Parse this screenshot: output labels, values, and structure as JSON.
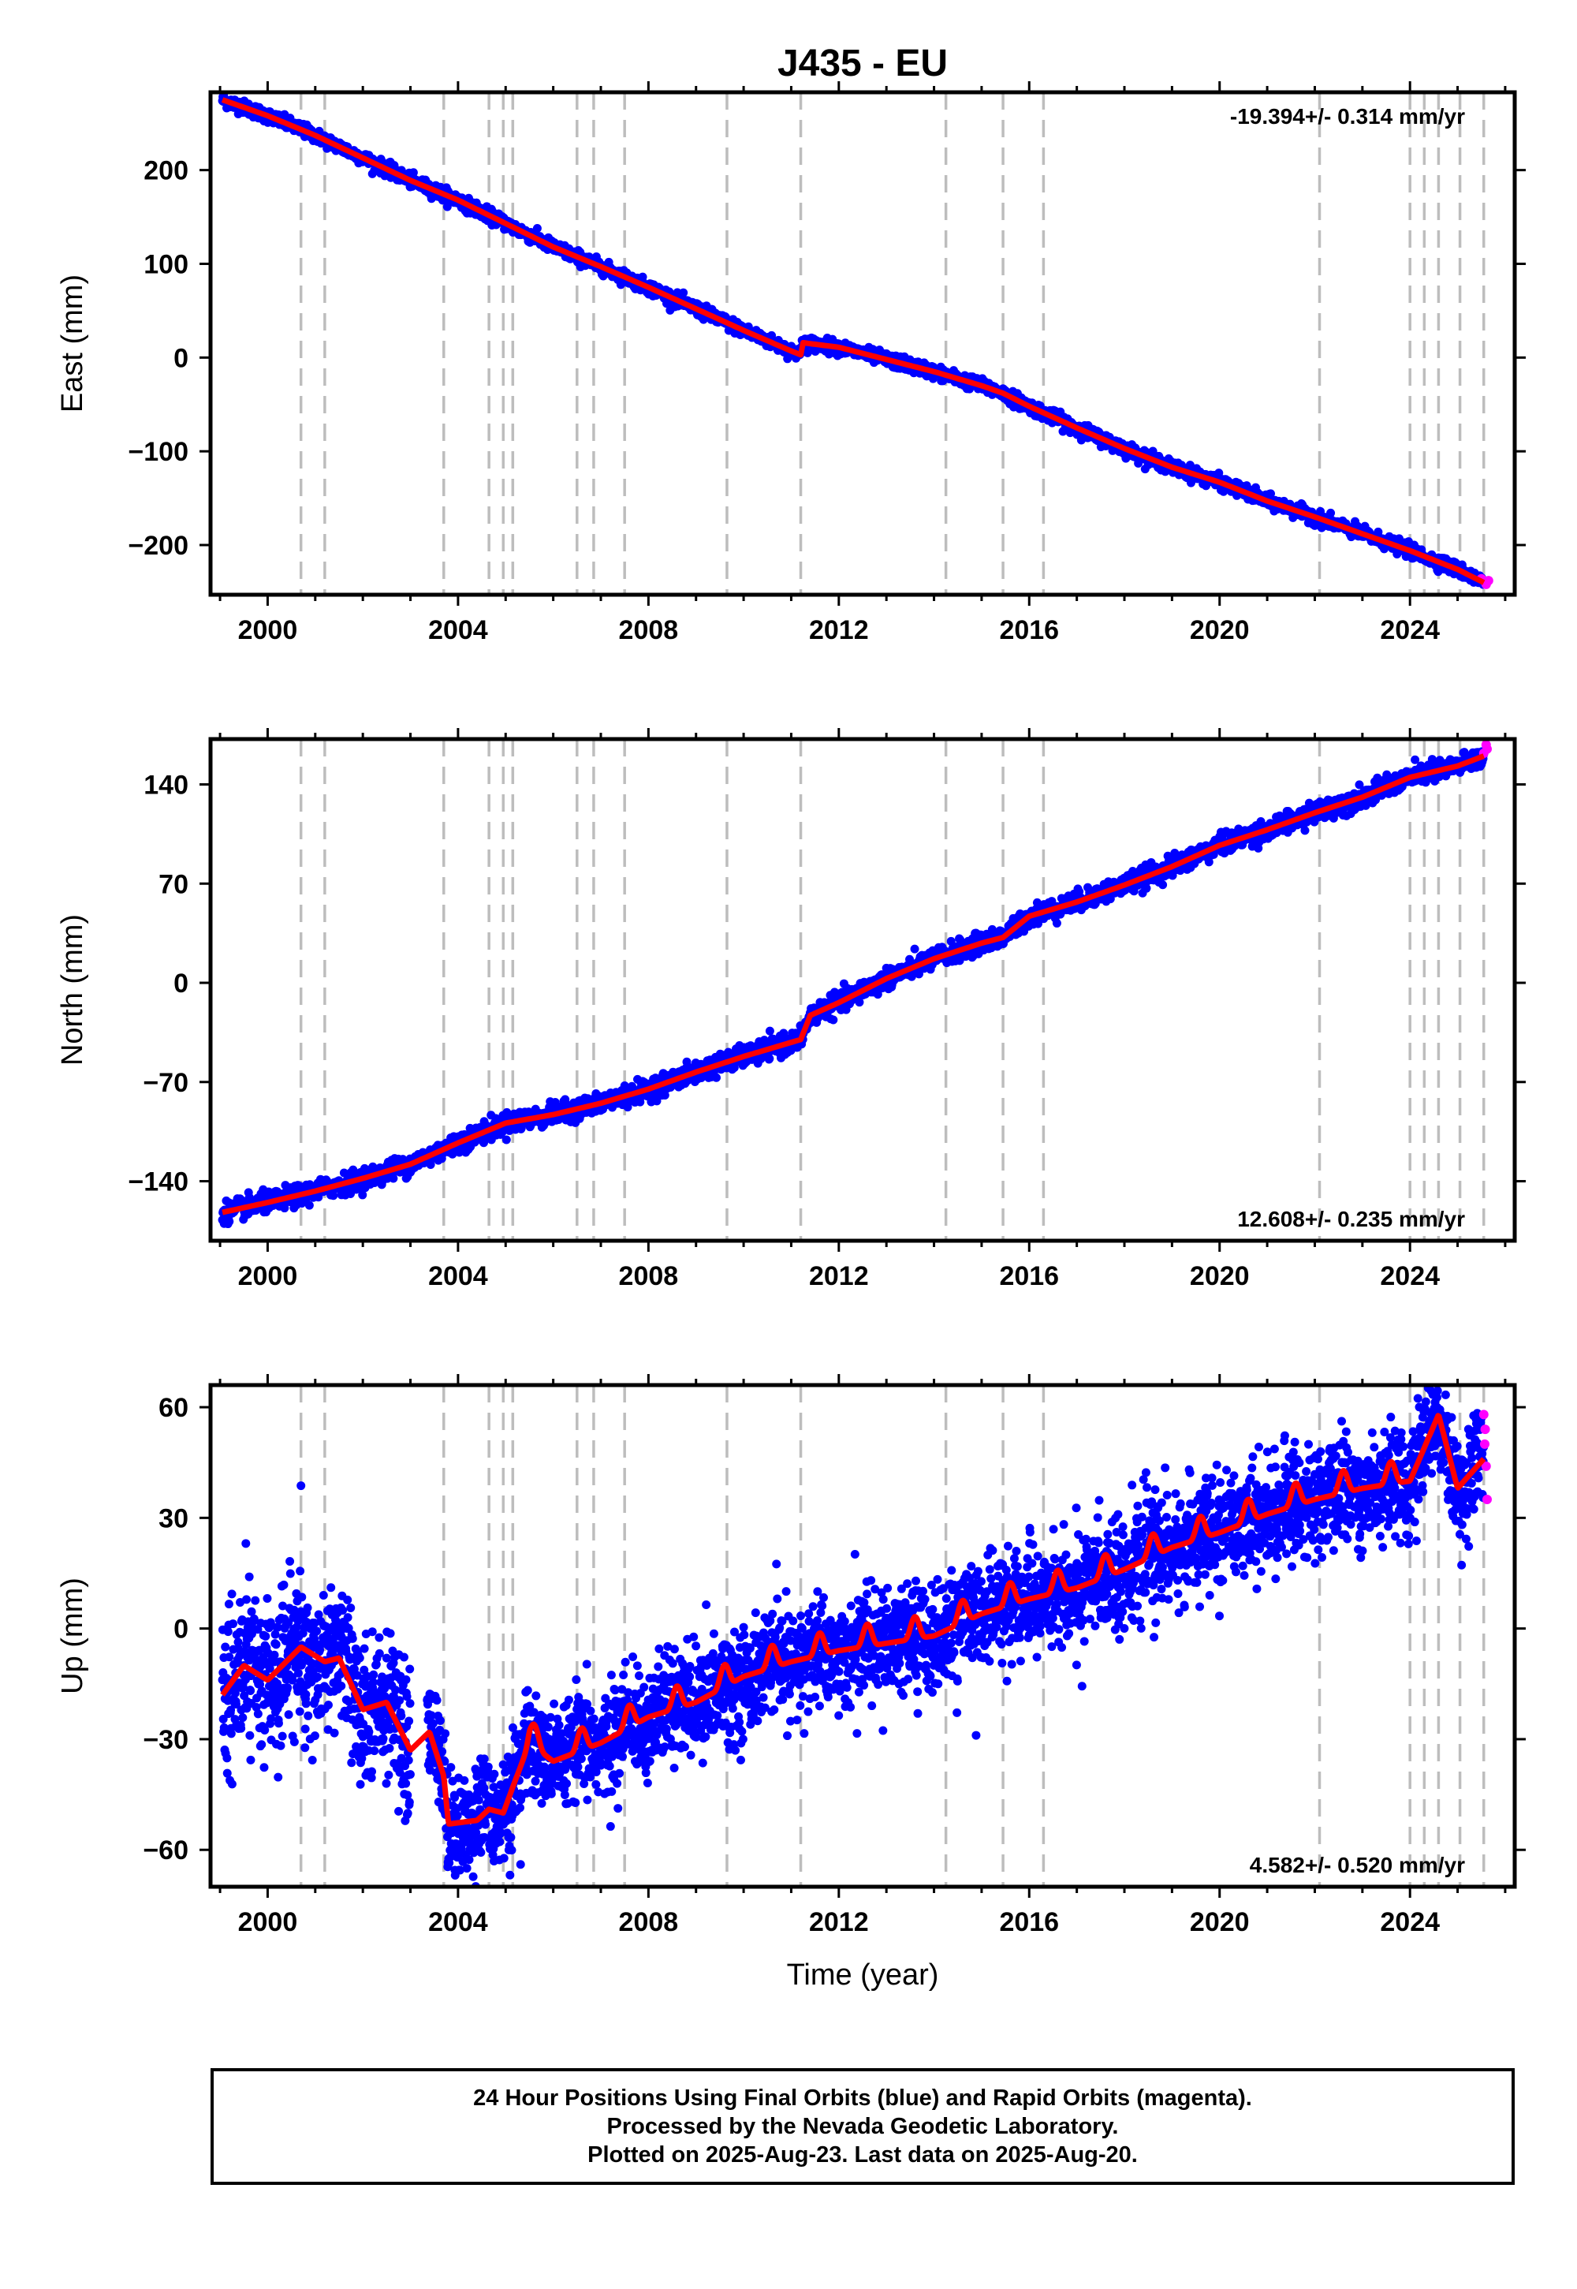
{
  "chart_data": {
    "type": "scatter",
    "title": "J435 - EU",
    "x_tick_labels": [
      "2000",
      "2004",
      "2008",
      "2012",
      "2016",
      "2020",
      "2024"
    ],
    "x_ticks": [
      2000,
      2004,
      2008,
      2012,
      2016,
      2020,
      2024
    ],
    "xlim": [
      1998.8,
      2026.2
    ],
    "xlabel": "Time (year)",
    "event_lines": [
      2000.7,
      2001.2,
      2003.7,
      2004.65,
      2004.95,
      2005.15,
      2006.5,
      2006.85,
      2007.5,
      2009.65,
      2011.2,
      2014.25,
      2015.45,
      2016.3,
      2022.1,
      2024.0,
      2024.3,
      2024.6,
      2025.05,
      2025.55
    ],
    "colors": {
      "final": "#0000ff",
      "rapid": "#ff00ff",
      "model": "#ff0000",
      "event_line": "#bdbdbd"
    },
    "panels": [
      {
        "name": "east",
        "ylabel": "East (mm)",
        "ylim": [
          -253,
          283
        ],
        "y_ticks": [
          200,
          100,
          0,
          -100,
          -200
        ],
        "y_tick_labels": [
          "200",
          "100",
          "0",
          "−100",
          "−200"
        ],
        "rate": "-19.394+/- 0.314 mm/yr",
        "rate_position": "top-right",
        "model_points": [
          [
            1999.05,
            275
          ],
          [
            2000.0,
            258
          ],
          [
            2001.0,
            237
          ],
          [
            2002.0,
            213
          ],
          [
            2003.0,
            189
          ],
          [
            2004.0,
            168
          ],
          [
            2005.0,
            143
          ],
          [
            2006.0,
            118
          ],
          [
            2007.0,
            97
          ],
          [
            2008.0,
            75
          ],
          [
            2009.0,
            52
          ],
          [
            2010.0,
            29
          ],
          [
            2011.0,
            7
          ],
          [
            2011.2,
            3
          ],
          [
            2011.22,
            16
          ],
          [
            2012.0,
            11
          ],
          [
            2013.0,
            -2
          ],
          [
            2014.0,
            -15
          ],
          [
            2015.0,
            -30
          ],
          [
            2015.45,
            -38
          ],
          [
            2016.0,
            -52
          ],
          [
            2017.0,
            -75
          ],
          [
            2018.0,
            -97
          ],
          [
            2019.0,
            -117
          ],
          [
            2020.0,
            -133
          ],
          [
            2021.0,
            -153
          ],
          [
            2022.0,
            -170
          ],
          [
            2023.0,
            -188
          ],
          [
            2024.0,
            -206
          ],
          [
            2025.0,
            -226
          ],
          [
            2025.55,
            -240
          ]
        ],
        "scatter_noise_mm": 3.5,
        "rapid_points": [
          [
            2025.5,
            -236
          ],
          [
            2025.6,
            -242
          ],
          [
            2025.65,
            -238
          ]
        ]
      },
      {
        "name": "north",
        "ylabel": "North (mm)",
        "ylim": [
          -182,
          172
        ],
        "y_ticks": [
          140,
          70,
          0,
          -70,
          -140
        ],
        "y_tick_labels": [
          "140",
          "70",
          "0",
          "−70",
          "−140"
        ],
        "rate": "12.608+/- 0.235 mm/yr",
        "rate_position": "bottom-right",
        "model_points": [
          [
            1999.05,
            -162
          ],
          [
            2000.0,
            -155
          ],
          [
            2001.0,
            -147
          ],
          [
            2002.0,
            -138
          ],
          [
            2003.0,
            -128
          ],
          [
            2004.0,
            -113
          ],
          [
            2005.0,
            -99
          ],
          [
            2006.0,
            -93
          ],
          [
            2007.0,
            -85
          ],
          [
            2008.0,
            -75
          ],
          [
            2009.0,
            -63
          ],
          [
            2010.0,
            -52
          ],
          [
            2011.0,
            -42
          ],
          [
            2011.2,
            -40
          ],
          [
            2011.4,
            -23
          ],
          [
            2012.0,
            -14
          ],
          [
            2013.0,
            3
          ],
          [
            2014.0,
            17
          ],
          [
            2015.0,
            28
          ],
          [
            2015.45,
            32
          ],
          [
            2016.0,
            47
          ],
          [
            2017.0,
            57
          ],
          [
            2018.0,
            69
          ],
          [
            2019.0,
            82
          ],
          [
            2020.0,
            97
          ],
          [
            2021.0,
            108
          ],
          [
            2022.0,
            120
          ],
          [
            2023.0,
            131
          ],
          [
            2024.0,
            145
          ],
          [
            2025.0,
            153
          ],
          [
            2025.55,
            160
          ]
        ],
        "scatter_noise_mm": 3.5,
        "rapid_points": [
          [
            2025.55,
            162
          ],
          [
            2025.6,
            168
          ],
          [
            2025.62,
            165
          ]
        ]
      },
      {
        "name": "up",
        "ylabel": "Up (mm)",
        "ylim": [
          -70,
          66
        ],
        "y_ticks": [
          60,
          30,
          0,
          -30,
          -60
        ],
        "y_tick_labels": [
          "60",
          "30",
          "0",
          "−30",
          "−60"
        ],
        "rate": "4.582+/- 0.520 mm/yr",
        "rate_position": "bottom-right",
        "model_points": [
          [
            1999.05,
            -18
          ],
          [
            1999.5,
            -10
          ],
          [
            2000.0,
            -14
          ],
          [
            2000.7,
            -5
          ],
          [
            2001.2,
            -9
          ],
          [
            2001.5,
            -8
          ],
          [
            2002.0,
            -22
          ],
          [
            2002.5,
            -20
          ],
          [
            2003.0,
            -33
          ],
          [
            2003.4,
            -28
          ],
          [
            2003.7,
            -40
          ],
          [
            2003.8,
            -53
          ],
          [
            2004.4,
            -52
          ],
          [
            2004.65,
            -49
          ],
          [
            2004.95,
            -50
          ],
          [
            2005.15,
            -43
          ],
          [
            2005.5,
            -31
          ],
          [
            2006.0,
            -36
          ],
          [
            2007.0,
            -31
          ],
          [
            2008.0,
            -24
          ],
          [
            2009.0,
            -20
          ],
          [
            2010.0,
            -13
          ],
          [
            2011.0,
            -9
          ],
          [
            2012.0,
            -6
          ],
          [
            2013.0,
            -4
          ],
          [
            2014.0,
            -2
          ],
          [
            2015.0,
            4
          ],
          [
            2016.0,
            8
          ],
          [
            2017.0,
            11
          ],
          [
            2018.0,
            16
          ],
          [
            2019.0,
            22
          ],
          [
            2020.0,
            26
          ],
          [
            2021.0,
            31
          ],
          [
            2022.0,
            35
          ],
          [
            2023.0,
            38
          ],
          [
            2024.0,
            40
          ],
          [
            2024.6,
            58
          ],
          [
            2025.0,
            38
          ],
          [
            2025.55,
            46
          ]
        ],
        "scatter_noise_mm": 7,
        "seasonal_amplitude_mm": 5,
        "data_gap": [
          2003.0,
          2003.35
        ],
        "rapid_points": [
          [
            2025.55,
            58
          ],
          [
            2025.57,
            50
          ],
          [
            2025.6,
            44
          ],
          [
            2025.62,
            35
          ],
          [
            2025.58,
            54
          ]
        ]
      }
    ]
  },
  "footer": {
    "line1": "24 Hour Positions Using Final Orbits (blue) and Rapid Orbits (magenta).",
    "line2": "Processed by the Nevada Geodetic Laboratory.",
    "line3": "Plotted on 2025-Aug-23. Last data on 2025-Aug-20."
  }
}
